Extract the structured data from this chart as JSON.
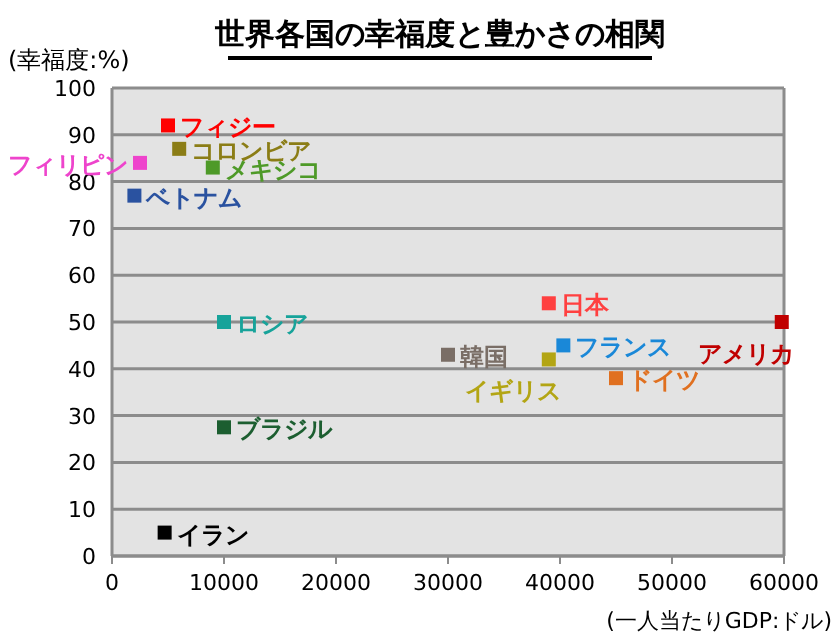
{
  "chart_data": {
    "type": "scatter",
    "title": "世界各国の幸福度と豊かさの相関",
    "xlabel": "(一人当たりGDP:ドル)",
    "ylabel": "(幸福度:%)",
    "xlim": [
      0,
      60000
    ],
    "xticks": [
      0,
      10000,
      20000,
      30000,
      40000,
      50000,
      60000
    ],
    "ylim": [
      0,
      100
    ],
    "yticks": [
      0,
      10,
      20,
      30,
      40,
      50,
      60,
      70,
      80,
      90,
      100
    ],
    "grid": "y",
    "marker": "square",
    "series": [
      {
        "name": "フィジー",
        "color": "#ff0000",
        "x": [
          5000
        ],
        "values": [
          92
        ]
      },
      {
        "name": "コロンビア",
        "color": "#8b7d16",
        "x": [
          6000
        ],
        "values": [
          87
        ]
      },
      {
        "name": "メキシコ",
        "color": "#4e9a28",
        "x": [
          9000
        ],
        "values": [
          83
        ]
      },
      {
        "name": "フィリピン",
        "color": "#ee44cc",
        "x": [
          2500
        ],
        "values": [
          84
        ]
      },
      {
        "name": "ベトナム",
        "color": "#2a52a0",
        "x": [
          2000
        ],
        "values": [
          77
        ]
      },
      {
        "name": "ロシア",
        "color": "#17a39a",
        "x": [
          10000
        ],
        "values": [
          50
        ]
      },
      {
        "name": "日本",
        "color": "#ff4040",
        "x": [
          39000
        ],
        "values": [
          54
        ]
      },
      {
        "name": "フランス",
        "color": "#1a88d8",
        "x": [
          40300
        ],
        "values": [
          45
        ]
      },
      {
        "name": "イギリス",
        "color": "#b3a514",
        "x": [
          39000
        ],
        "values": [
          42
        ]
      },
      {
        "name": "韓国",
        "color": "#7a6e66",
        "x": [
          30000
        ],
        "values": [
          43
        ]
      },
      {
        "name": "ドイツ",
        "color": "#e07020",
        "x": [
          45000
        ],
        "values": [
          38
        ]
      },
      {
        "name": "アメリカ",
        "color": "#c00000",
        "x": [
          59800
        ],
        "values": [
          50
        ]
      },
      {
        "name": "ブラジル",
        "color": "#1c5e30",
        "x": [
          10000
        ],
        "values": [
          27.5
        ]
      },
      {
        "name": "イラン",
        "color": "#000000",
        "x": [
          4700
        ],
        "values": [
          5
        ]
      }
    ]
  }
}
